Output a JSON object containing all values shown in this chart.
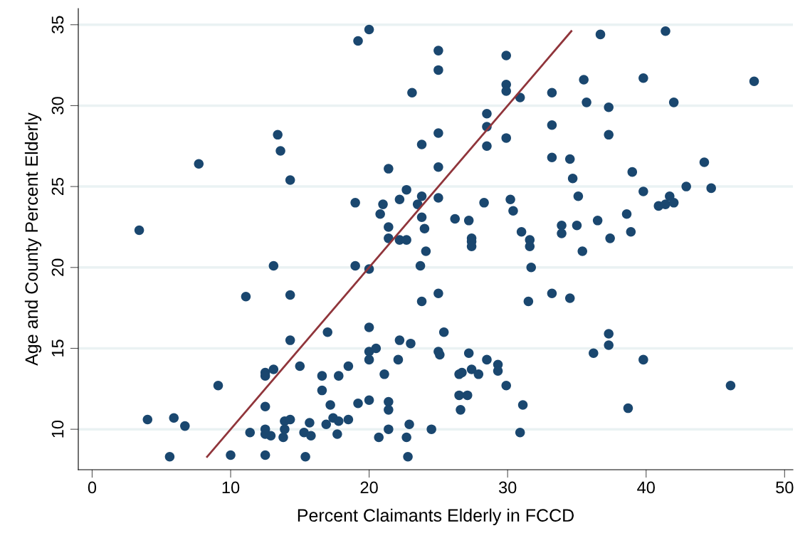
{
  "chart_data": {
    "type": "scatter",
    "xlabel": "Percent Claimants Elderly in FCCD",
    "ylabel": "Age and County Percent Elderly",
    "xlim": [
      -1,
      50.6
    ],
    "ylim": [
      7.5,
      36
    ],
    "xticks": [
      0,
      10,
      20,
      30,
      40,
      50
    ],
    "yticks": [
      10,
      15,
      20,
      25,
      30,
      35
    ],
    "grid": "y",
    "series": [
      {
        "marker": "circle",
        "color": "#1a476f",
        "x": [
          3.4,
          4.0,
          5.9,
          6.7,
          5.6,
          7.7,
          9.1,
          10.0,
          11.4,
          11.1,
          12.5,
          12.5,
          12.5,
          12.5,
          12.5,
          12.9,
          12.5,
          13.1,
          13.1,
          13.4,
          13.6,
          13.8,
          13.9,
          13.9,
          14.3,
          14.3,
          14.3,
          14.3,
          15.0,
          15.3,
          15.4,
          15.8,
          15.7,
          16.6,
          16.6,
          16.9,
          17.0,
          17.2,
          17.4,
          17.7,
          17.8,
          17.8,
          18.5,
          18.5,
          19.0,
          19.0,
          19.2,
          19.2,
          20.0,
          20.0,
          20.0,
          20.0,
          20.0,
          20.0,
          20.5,
          20.7,
          20.8,
          21.0,
          21.1,
          21.4,
          21.4,
          21.4,
          21.4,
          21.4,
          21.4,
          22.1,
          22.2,
          22.2,
          22.2,
          22.7,
          22.7,
          22.7,
          22.8,
          22.9,
          23.0,
          23.1,
          23.5,
          23.7,
          23.8,
          23.8,
          23.8,
          23.8,
          24.0,
          24.1,
          24.5,
          25.0,
          25.0,
          25.0,
          25.0,
          25.0,
          25.0,
          25.0,
          25.1,
          25.4,
          26.2,
          26.5,
          26.5,
          26.6,
          26.7,
          27.1,
          27.2,
          27.2,
          27.4,
          27.4,
          27.4,
          27.4,
          27.9,
          28.3,
          28.5,
          28.5,
          28.5,
          28.5,
          29.3,
          29.3,
          29.9,
          29.9,
          29.9,
          29.9,
          29.9,
          30.2,
          30.4,
          30.9,
          30.9,
          31.0,
          31.1,
          31.5,
          31.6,
          31.6,
          31.7,
          33.2,
          33.2,
          33.2,
          33.2,
          33.9,
          33.9,
          34.5,
          34.5,
          34.7,
          35.0,
          35.1,
          35.4,
          35.5,
          35.7,
          36.2,
          36.5,
          36.7,
          37.3,
          37.3,
          37.3,
          37.3,
          37.4,
          38.6,
          38.7,
          38.9,
          39.0,
          39.8,
          39.8,
          39.8,
          40.9,
          41.4,
          41.4,
          41.7,
          42.0,
          42.0,
          42.9,
          44.2,
          44.7,
          46.1,
          47.8
        ],
        "values": [
          22.3,
          10.6,
          10.7,
          10.2,
          8.3,
          26.4,
          12.7,
          8.4,
          9.8,
          18.2,
          13.5,
          13.3,
          11.4,
          10.0,
          8.4,
          9.6,
          9.7,
          13.7,
          20.1,
          28.2,
          27.2,
          9.5,
          10.5,
          10.0,
          25.4,
          18.3,
          15.5,
          10.6,
          13.9,
          9.8,
          8.3,
          9.6,
          10.4,
          13.3,
          12.4,
          10.3,
          16.0,
          11.5,
          10.7,
          9.7,
          13.3,
          10.5,
          13.9,
          10.6,
          24.0,
          20.1,
          34.0,
          11.6,
          34.7,
          19.9,
          16.3,
          14.8,
          14.3,
          11.8,
          15.0,
          9.5,
          23.3,
          23.9,
          13.4,
          26.1,
          22.5,
          21.8,
          11.7,
          11.2,
          10.0,
          14.3,
          24.2,
          21.7,
          15.5,
          24.8,
          21.7,
          9.5,
          8.3,
          10.3,
          15.3,
          30.8,
          23.9,
          20.1,
          27.6,
          24.4,
          23.1,
          17.9,
          22.4,
          21.0,
          10.0,
          33.4,
          32.2,
          28.3,
          26.2,
          24.3,
          18.4,
          14.8,
          14.6,
          16.0,
          23.0,
          13.4,
          12.1,
          11.2,
          13.5,
          12.1,
          22.9,
          14.7,
          21.8,
          21.6,
          21.3,
          13.7,
          13.4,
          24.0,
          29.5,
          28.7,
          27.5,
          14.3,
          14.0,
          13.6,
          33.1,
          31.3,
          30.9,
          28.0,
          12.7,
          24.2,
          23.5,
          30.5,
          9.8,
          22.2,
          11.5,
          17.9,
          21.7,
          21.3,
          20.0,
          30.8,
          28.8,
          26.8,
          18.4,
          22.6,
          22.1,
          26.7,
          18.1,
          25.5,
          22.6,
          24.4,
          21.0,
          31.6,
          30.2,
          14.7,
          22.9,
          34.4,
          29.9,
          28.2,
          15.9,
          15.2,
          21.8,
          23.3,
          11.3,
          22.2,
          25.9,
          31.7,
          24.7,
          14.3,
          23.8,
          34.6,
          23.9,
          24.4,
          30.2,
          24.0,
          25.0,
          26.5,
          24.9,
          12.7,
          31.5
        ]
      },
      {
        "type": "line",
        "marker": "none",
        "color": "#90353b",
        "x": [
          8.3,
          34.6
        ],
        "values": [
          8.3,
          34.6
        ]
      }
    ]
  }
}
